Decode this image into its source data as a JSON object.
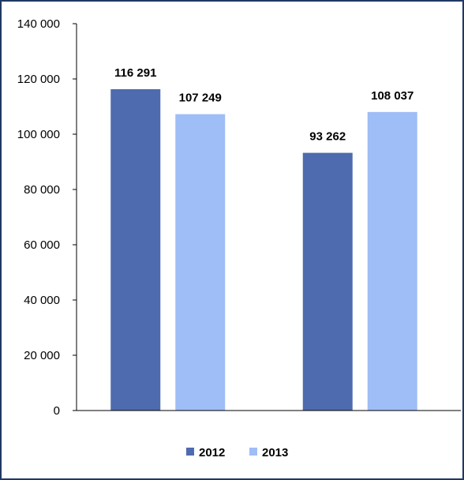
{
  "chart_data": {
    "type": "bar",
    "title": "",
    "xlabel": "",
    "ylabel": "",
    "categories": [
      "",
      ""
    ],
    "series": [
      {
        "name": "2012",
        "values": [
          116291,
          93262
        ],
        "labels": [
          "116 291",
          "93 262"
        ],
        "color": "#4f6baf"
      },
      {
        "name": "2013",
        "values": [
          107249,
          108037
        ],
        "labels": [
          "107 249",
          "108 037"
        ],
        "color": "#9fbdf6"
      }
    ],
    "ylim": [
      0,
      140000
    ],
    "yticks": [
      0,
      20000,
      40000,
      60000,
      80000,
      100000,
      120000,
      140000
    ],
    "ytick_labels": [
      "0",
      "20 000",
      "40 000",
      "60 000",
      "80 000",
      "100 000",
      "120 000",
      "140 000"
    ],
    "grid": false,
    "legend": "bottom",
    "frame_color": "#1f3864"
  }
}
